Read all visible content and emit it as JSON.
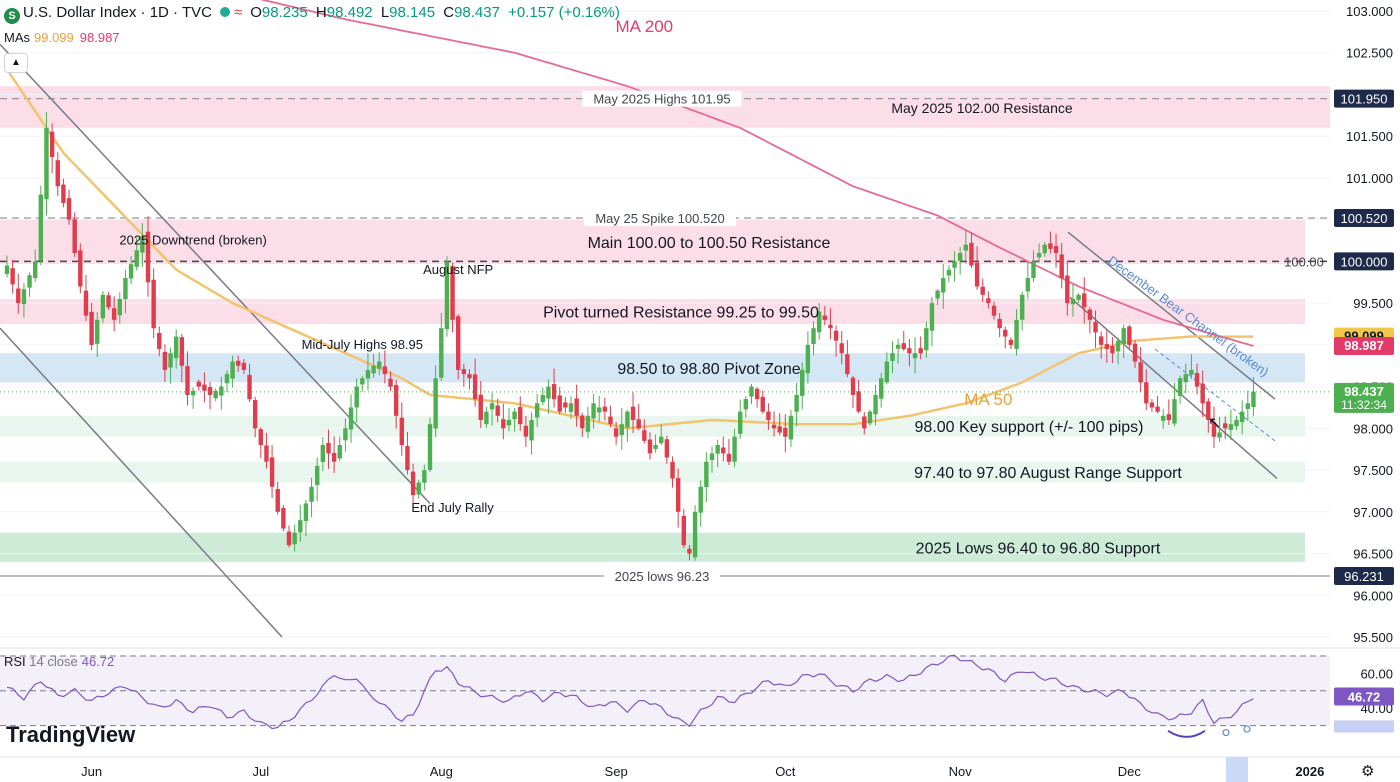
{
  "header": {
    "symbol_icon": "S",
    "title": "U.S. Dollar Index · 1D · TVC",
    "replay_icon": "≈",
    "o_label": "O",
    "o": "98.235",
    "h_label": "H",
    "h": "98.492",
    "l_label": "L",
    "l": "98.145",
    "c_label": "C",
    "c": "98.437",
    "change": "+0.157 (+0.16%)"
  },
  "mas": {
    "label": "MAs",
    "ma50": "99.099",
    "ma200": "98.987"
  },
  "collapse_icon": "▲",
  "rsi": {
    "label": "RSI",
    "params": "14 close",
    "value": "46.72"
  },
  "logo": "TradingView",
  "settings_icon": "⚙",
  "colors": {
    "up": "#4caf50",
    "down": "#e03c4d",
    "ma50": "#f2c46f",
    "ma200": "#e86a92",
    "rsi": "#7e57c2",
    "pink_zone": "#f8c8d8",
    "blue_zone": "#b9d6ee",
    "green_zone": "#cdebd8"
  },
  "chart_data": {
    "type": "candlestick",
    "title": "U.S. Dollar Index · 1D · TVC",
    "ylim": [
      95.2,
      103.1
    ],
    "y_ticks": [
      "103.000",
      "102.500",
      "102.000",
      "101.500",
      "101.000",
      "100.500",
      "100.000",
      "99.500",
      "99.000",
      "98.500",
      "98.000",
      "97.500",
      "97.000",
      "96.500",
      "96.000",
      "95.500"
    ],
    "x_ticks": [
      {
        "label": "Jun",
        "day": 15
      },
      {
        "label": "Jul",
        "day": 45
      },
      {
        "label": "Aug",
        "day": 77
      },
      {
        "label": "Sep",
        "day": 108
      },
      {
        "label": "Oct",
        "day": 138
      },
      {
        "label": "Nov",
        "day": 169
      },
      {
        "label": "Dec",
        "day": 199
      },
      {
        "label": "2026",
        "day": 231
      }
    ],
    "last_day": 234,
    "close_anchors": [
      [
        0,
        99.95
      ],
      [
        2,
        99.5
      ],
      [
        5,
        100.0
      ],
      [
        7,
        101.6
      ],
      [
        9,
        100.9
      ],
      [
        11,
        100.5
      ],
      [
        13,
        99.7
      ],
      [
        15,
        99.0
      ],
      [
        17,
        99.6
      ],
      [
        19,
        99.3
      ],
      [
        21,
        99.8
      ],
      [
        24,
        100.3
      ],
      [
        26,
        99.2
      ],
      [
        28,
        98.7
      ],
      [
        30,
        99.1
      ],
      [
        32,
        98.4
      ],
      [
        34,
        98.5
      ],
      [
        36,
        98.4
      ],
      [
        38,
        98.5
      ],
      [
        40,
        98.8
      ],
      [
        42,
        98.7
      ],
      [
        44,
        98.0
      ],
      [
        46,
        97.6
      ],
      [
        48,
        97.0
      ],
      [
        50,
        96.6
      ],
      [
        52,
        96.9
      ],
      [
        54,
        97.3
      ],
      [
        56,
        97.8
      ],
      [
        58,
        97.6
      ],
      [
        60,
        98.0
      ],
      [
        62,
        98.5
      ],
      [
        64,
        98.7
      ],
      [
        66,
        98.8
      ],
      [
        68,
        98.5
      ],
      [
        70,
        97.8
      ],
      [
        72,
        97.2
      ],
      [
        74,
        97.5
      ],
      [
        76,
        98.6
      ],
      [
        77,
        99.2
      ],
      [
        78,
        100.0
      ],
      [
        79,
        99.3
      ],
      [
        80,
        98.7
      ],
      [
        82,
        98.6
      ],
      [
        84,
        98.1
      ],
      [
        86,
        98.3
      ],
      [
        88,
        98.0
      ],
      [
        90,
        98.2
      ],
      [
        92,
        97.9
      ],
      [
        94,
        98.3
      ],
      [
        96,
        98.5
      ],
      [
        98,
        98.2
      ],
      [
        100,
        98.3
      ],
      [
        102,
        98.0
      ],
      [
        104,
        98.3
      ],
      [
        106,
        98.2
      ],
      [
        108,
        97.9
      ],
      [
        110,
        98.2
      ],
      [
        112,
        98.0
      ],
      [
        114,
        97.7
      ],
      [
        116,
        97.9
      ],
      [
        118,
        97.4
      ],
      [
        120,
        96.6
      ],
      [
        121,
        96.5
      ],
      [
        122,
        97.0
      ],
      [
        124,
        97.6
      ],
      [
        126,
        97.8
      ],
      [
        128,
        97.6
      ],
      [
        130,
        98.2
      ],
      [
        132,
        98.5
      ],
      [
        134,
        98.2
      ],
      [
        136,
        98.0
      ],
      [
        138,
        97.9
      ],
      [
        140,
        98.4
      ],
      [
        142,
        99.0
      ],
      [
        144,
        99.4
      ],
      [
        146,
        99.2
      ],
      [
        148,
        98.9
      ],
      [
        150,
        98.4
      ],
      [
        152,
        98.0
      ],
      [
        154,
        98.4
      ],
      [
        156,
        98.8
      ],
      [
        158,
        99.0
      ],
      [
        160,
        98.9
      ],
      [
        162,
        98.9
      ],
      [
        164,
        99.5
      ],
      [
        166,
        99.8
      ],
      [
        168,
        100.0
      ],
      [
        170,
        100.2
      ],
      [
        172,
        99.7
      ],
      [
        174,
        99.5
      ],
      [
        176,
        99.2
      ],
      [
        178,
        99.0
      ],
      [
        180,
        99.6
      ],
      [
        182,
        100.0
      ],
      [
        184,
        100.2
      ],
      [
        186,
        100.1
      ],
      [
        188,
        99.5
      ],
      [
        190,
        99.6
      ],
      [
        192,
        99.3
      ],
      [
        194,
        99.0
      ],
      [
        196,
        98.9
      ],
      [
        198,
        99.2
      ],
      [
        200,
        98.8
      ],
      [
        202,
        98.3
      ],
      [
        204,
        98.2
      ],
      [
        206,
        98.1
      ],
      [
        208,
        98.6
      ],
      [
        210,
        98.7
      ],
      [
        212,
        98.3
      ],
      [
        214,
        97.9
      ],
      [
        216,
        98.0
      ],
      [
        218,
        98.1
      ],
      [
        220,
        98.3
      ],
      [
        221,
        98.44
      ]
    ],
    "ma50_anchors": [
      [
        0,
        102.3
      ],
      [
        10,
        101.3
      ],
      [
        20,
        100.6
      ],
      [
        30,
        99.9
      ],
      [
        40,
        99.5
      ],
      [
        50,
        99.2
      ],
      [
        60,
        98.9
      ],
      [
        70,
        98.6
      ],
      [
        75,
        98.4
      ],
      [
        90,
        98.3
      ],
      [
        110,
        98.0
      ],
      [
        125,
        98.1
      ],
      [
        140,
        98.05
      ],
      [
        150,
        98.05
      ],
      [
        160,
        98.15
      ],
      [
        170,
        98.3
      ],
      [
        180,
        98.55
      ],
      [
        190,
        98.9
      ],
      [
        200,
        99.05
      ],
      [
        210,
        99.1
      ],
      [
        221,
        99.099
      ]
    ],
    "ma200_anchors": [
      [
        35,
        103.3
      ],
      [
        60,
        102.9
      ],
      [
        90,
        102.5
      ],
      [
        110,
        102.1
      ],
      [
        130,
        101.6
      ],
      [
        150,
        100.9
      ],
      [
        165,
        100.55
      ],
      [
        175,
        100.2
      ],
      [
        190,
        99.7
      ],
      [
        205,
        99.3
      ],
      [
        221,
        98.987
      ]
    ],
    "rsi_ylim": [
      20,
      70
    ],
    "rsi_levels": [
      70,
      50,
      30
    ],
    "rsi_tick_labels": [
      "60.00",
      "40.00"
    ],
    "rsi_anchors": [
      [
        0,
        52
      ],
      [
        3,
        46
      ],
      [
        6,
        56
      ],
      [
        9,
        47
      ],
      [
        12,
        50
      ],
      [
        15,
        44
      ],
      [
        18,
        49
      ],
      [
        21,
        53
      ],
      [
        24,
        46
      ],
      [
        27,
        40
      ],
      [
        30,
        44
      ],
      [
        33,
        38
      ],
      [
        36,
        42
      ],
      [
        39,
        35
      ],
      [
        42,
        38
      ],
      [
        45,
        31
      ],
      [
        48,
        29
      ],
      [
        50,
        33
      ],
      [
        53,
        42
      ],
      [
        56,
        52
      ],
      [
        58,
        60
      ],
      [
        60,
        55
      ],
      [
        62,
        58
      ],
      [
        64,
        48
      ],
      [
        66,
        44
      ],
      [
        68,
        38
      ],
      [
        70,
        33
      ],
      [
        72,
        36
      ],
      [
        74,
        50
      ],
      [
        76,
        62
      ],
      [
        78,
        63
      ],
      [
        80,
        55
      ],
      [
        83,
        49
      ],
      [
        86,
        46
      ],
      [
        89,
        44
      ],
      [
        92,
        50
      ],
      [
        95,
        45
      ],
      [
        98,
        49
      ],
      [
        101,
        46
      ],
      [
        104,
        40
      ],
      [
        107,
        44
      ],
      [
        110,
        39
      ],
      [
        113,
        45
      ],
      [
        116,
        40
      ],
      [
        119,
        33
      ],
      [
        121,
        31
      ],
      [
        123,
        38
      ],
      [
        126,
        46
      ],
      [
        129,
        44
      ],
      [
        132,
        50
      ],
      [
        135,
        56
      ],
      [
        138,
        52
      ],
      [
        141,
        58
      ],
      [
        144,
        60
      ],
      [
        147,
        54
      ],
      [
        150,
        50
      ],
      [
        153,
        56
      ],
      [
        156,
        58
      ],
      [
        159,
        56
      ],
      [
        162,
        61
      ],
      [
        165,
        66
      ],
      [
        168,
        70
      ],
      [
        171,
        66
      ],
      [
        174,
        62
      ],
      [
        177,
        56
      ],
      [
        180,
        62
      ],
      [
        183,
        58
      ],
      [
        186,
        56
      ],
      [
        189,
        52
      ],
      [
        192,
        50
      ],
      [
        195,
        48
      ],
      [
        198,
        50
      ],
      [
        201,
        42
      ],
      [
        204,
        36
      ],
      [
        207,
        34
      ],
      [
        210,
        38
      ],
      [
        212,
        44
      ],
      [
        214,
        32
      ],
      [
        216,
        34
      ],
      [
        218,
        38
      ],
      [
        220,
        44
      ],
      [
        221,
        46.72
      ]
    ],
    "hlines": [
      {
        "price": 101.95,
        "label": "101.950",
        "style": "dash-gray",
        "text": "May 2025 Highs 101.95"
      },
      {
        "price": 100.52,
        "label": "100.520",
        "style": "dash-gray",
        "text": "May 25 Spike 100.520"
      },
      {
        "price": 100.0,
        "label": "100.000",
        "style": "dash-dark",
        "text": "100.00"
      },
      {
        "price": 96.231,
        "label": "96.231",
        "style": "solid-gray",
        "text": "2025 lows 96.23"
      }
    ],
    "zones": [
      {
        "from": 101.6,
        "to": 102.1,
        "color": "pink",
        "text": "May 2025 102.00 Resistance"
      },
      {
        "from": 99.97,
        "to": 100.5,
        "color": "pink",
        "text": "Main 100.00 to 100.50 Resistance"
      },
      {
        "from": 99.25,
        "to": 99.55,
        "color": "pink",
        "text": "Pivot turned Resistance 99.25 to 99.50"
      },
      {
        "from": 98.55,
        "to": 98.9,
        "color": "blue",
        "text": "98.50 to 98.80 Pivot Zone"
      },
      {
        "from": 97.9,
        "to": 98.15,
        "color": "green",
        "text": "98.00 Key support (+/- 100 pips)"
      },
      {
        "from": 97.35,
        "to": 97.6,
        "color": "green",
        "text": "97.40 to 97.80 August Range Support"
      },
      {
        "from": 96.4,
        "to": 96.75,
        "color": "green-strong",
        "text": "2025 Lows 96.40 to 96.80 Support"
      }
    ],
    "annotations": [
      {
        "text": "MA 200",
        "day": 113,
        "price": 102.75,
        "color": "#e23b6a"
      },
      {
        "text": "MA 50",
        "day": 174,
        "price": 98.28,
        "color": "#e8a13a"
      },
      {
        "text": "2025 Downtrend (broken)",
        "day": 33,
        "price": 100.2
      },
      {
        "text": "August NFP",
        "day": 80,
        "price": 99.85
      },
      {
        "text": "Mid-July Highs 98.95",
        "day": 63,
        "price": 98.95
      },
      {
        "text": "End July Rally",
        "day": 79,
        "price": 97.0
      },
      {
        "text": "December Bear Channel (broken)",
        "day": 209,
        "price": 99.3
      }
    ],
    "price_labels": [
      {
        "price": 99.099,
        "text": "99.099",
        "color": "#f2c84b",
        "fg": "#131722"
      },
      {
        "price": 98.987,
        "text": "98.987",
        "color": "#e23b6a",
        "fg": "#ffffff"
      },
      {
        "price": 98.437,
        "text": "98.437",
        "color": "#4caf50",
        "fg": "#ffffff",
        "sub": "11:32:34"
      }
    ],
    "rsi_price_label": {
      "text": "46.72",
      "color": "#7e57c2"
    }
  }
}
